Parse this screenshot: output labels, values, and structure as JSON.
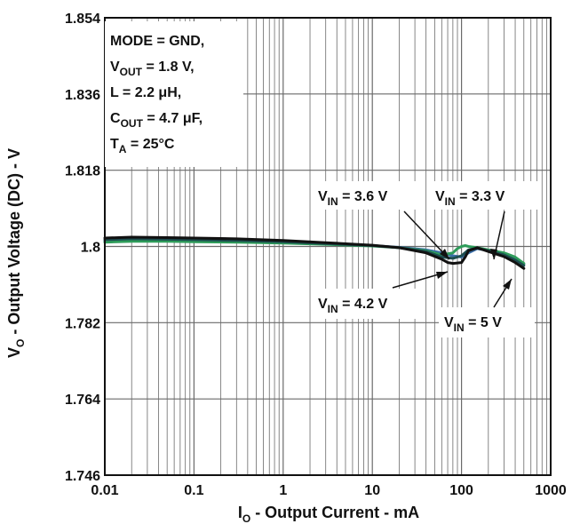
{
  "chart_data": {
    "type": "line",
    "title": "",
    "xlabel": {
      "main": "I",
      "sub": "O",
      "rest": " - Output Current - mA"
    },
    "ylabel": {
      "main": "V",
      "sub": "O",
      "rest": " - Output Voltage (DC) - V"
    },
    "xscale": "log",
    "xlim": [
      0.01,
      1000
    ],
    "ylim": [
      1.746,
      1.854
    ],
    "x_ticks": [
      {
        "v": 0.01,
        "label": "0.01"
      },
      {
        "v": 0.1,
        "label": "0.1"
      },
      {
        "v": 1,
        "label": "1"
      },
      {
        "v": 10,
        "label": "10"
      },
      {
        "v": 100,
        "label": "100"
      },
      {
        "v": 1000,
        "label": "1000"
      }
    ],
    "y_ticks": [
      {
        "v": 1.746,
        "label": "1.746"
      },
      {
        "v": 1.764,
        "label": "1.764"
      },
      {
        "v": 1.782,
        "label": "1.782"
      },
      {
        "v": 1.8,
        "label": "1.8"
      },
      {
        "v": 1.818,
        "label": "1.818"
      },
      {
        "v": 1.836,
        "label": "1.836"
      },
      {
        "v": 1.854,
        "label": "1.854"
      }
    ],
    "grid": true,
    "conditions": [
      {
        "main": "MODE = GND,",
        "sub": "",
        "rest": ""
      },
      {
        "main": "V",
        "sub": "OUT",
        "rest": " = 1.8 V,"
      },
      {
        "main": "L = 2.2 μH,",
        "sub": "",
        "rest": ""
      },
      {
        "main": "C",
        "sub": "OUT",
        "rest": " = 4.7 μF,"
      },
      {
        "main": "T",
        "sub": "A",
        "rest": " = 25°C"
      }
    ],
    "series": [
      {
        "label": {
          "main": "V",
          "sub": "IN",
          "rest": " = 3.3 V"
        },
        "color": "#3a6ea8",
        "x": [
          0.01,
          0.02,
          0.05,
          0.1,
          0.3,
          1,
          3,
          10,
          20,
          40,
          60,
          80,
          100,
          120,
          150,
          200,
          300,
          400,
          500
        ],
        "y": [
          1.8012,
          1.8014,
          1.8013,
          1.8012,
          1.8011,
          1.8009,
          1.8006,
          1.8002,
          1.7998,
          1.7992,
          1.7985,
          1.7978,
          1.7975,
          1.7985,
          1.7995,
          1.799,
          1.7982,
          1.7972,
          1.7958
        ]
      },
      {
        "label": {
          "main": "V",
          "sub": "IN",
          "rest": " = 3.6 V"
        },
        "color": "#2e9c5a",
        "x": [
          0.01,
          0.02,
          0.05,
          0.1,
          0.3,
          1,
          3,
          10,
          20,
          40,
          60,
          80,
          90,
          100,
          110,
          120,
          150,
          200,
          300,
          400,
          500
        ],
        "y": [
          1.801,
          1.8012,
          1.8012,
          1.8011,
          1.801,
          1.8008,
          1.8005,
          1.8001,
          1.7997,
          1.799,
          1.798,
          1.7985,
          1.7995,
          1.8,
          1.8002,
          1.8,
          1.7997,
          1.7992,
          1.7985,
          1.7975,
          1.796
        ]
      },
      {
        "label": {
          "main": "V",
          "sub": "IN",
          "rest": " = 4.2 V"
        },
        "color": "#1d4d4f",
        "x": [
          0.01,
          0.02,
          0.05,
          0.1,
          0.3,
          1,
          3,
          10,
          20,
          40,
          60,
          80,
          100,
          120,
          150,
          200,
          300,
          400,
          500
        ],
        "y": [
          1.8016,
          1.8018,
          1.8017,
          1.8016,
          1.8014,
          1.8011,
          1.8007,
          1.8002,
          1.7997,
          1.7988,
          1.7975,
          1.7972,
          1.7978,
          1.7992,
          1.7996,
          1.799,
          1.798,
          1.7968,
          1.7955
        ]
      },
      {
        "label": {
          "main": "V",
          "sub": "IN",
          "rest": " = 5 V"
        },
        "color": "#111111",
        "x": [
          0.01,
          0.02,
          0.05,
          0.1,
          0.3,
          1,
          3,
          10,
          20,
          40,
          60,
          70,
          80,
          100,
          110,
          120,
          150,
          200,
          300,
          400,
          500
        ],
        "y": [
          1.802,
          1.8022,
          1.8021,
          1.802,
          1.8018,
          1.8014,
          1.8009,
          1.8003,
          1.7997,
          1.7985,
          1.797,
          1.7962,
          1.796,
          1.7962,
          1.7975,
          1.799,
          1.7997,
          1.7988,
          1.7976,
          1.7962,
          1.7948
        ]
      }
    ]
  }
}
